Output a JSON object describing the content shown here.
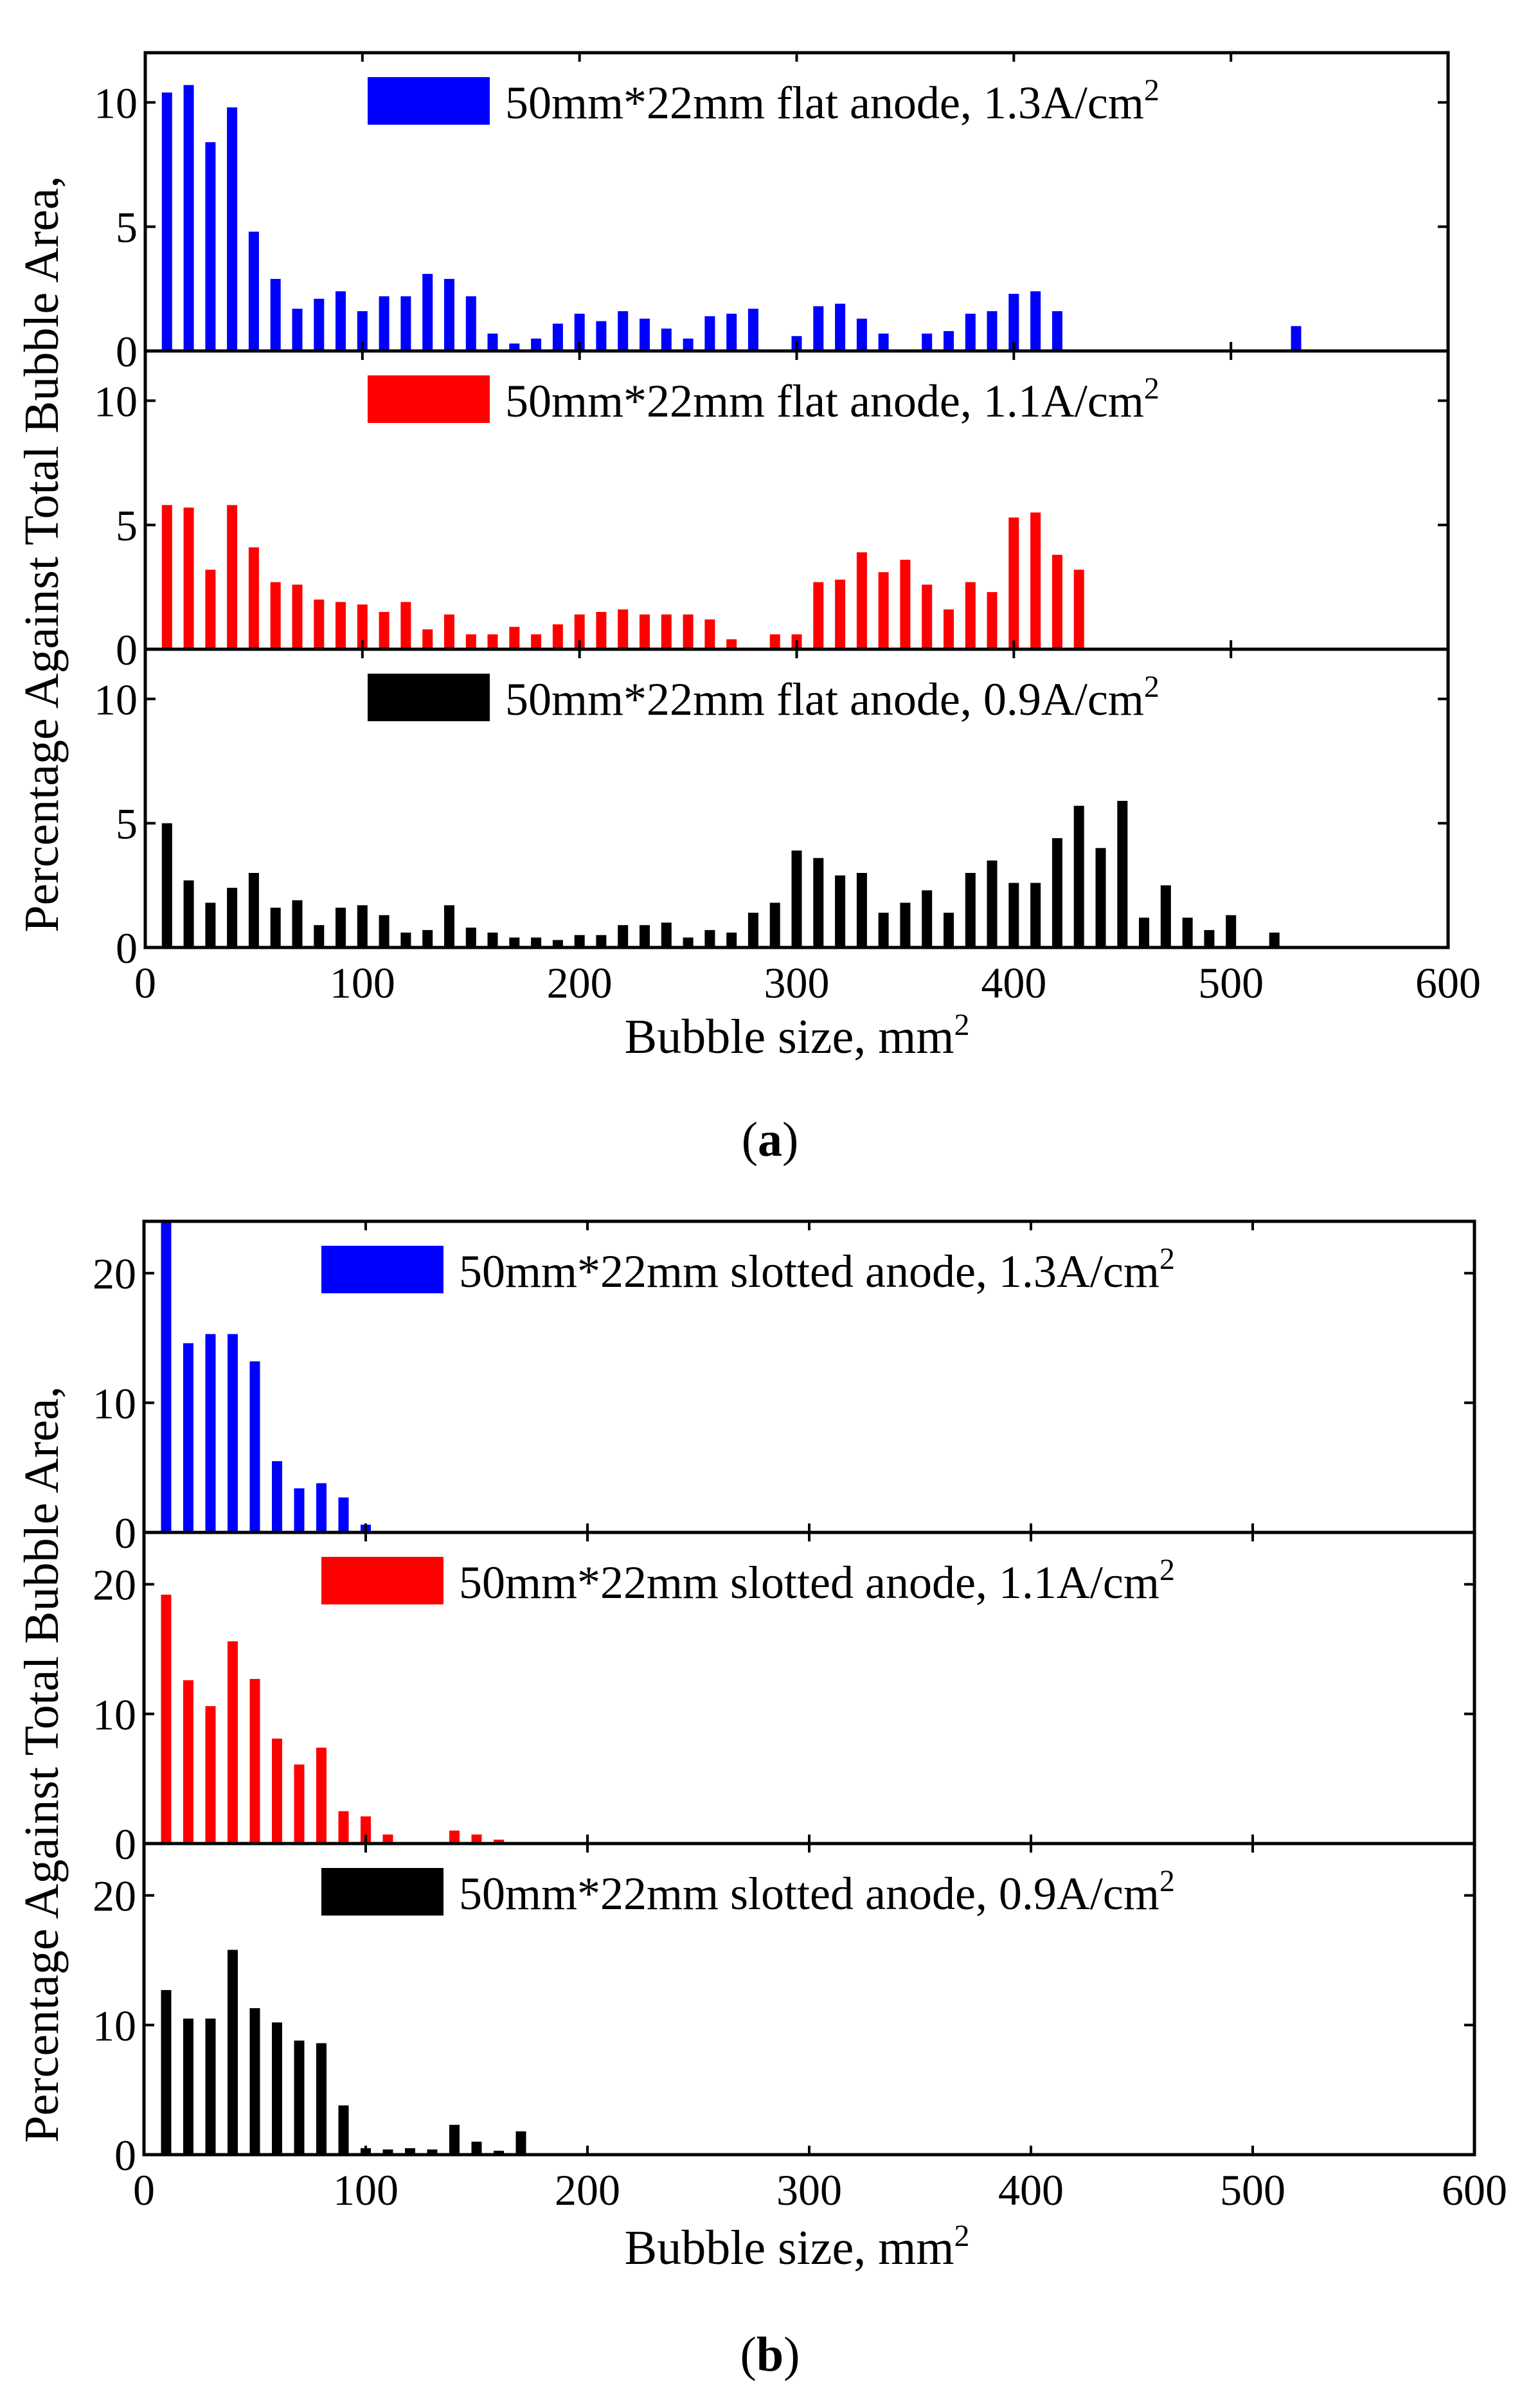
{
  "caption_a_open": "(",
  "caption_a_letter": "a",
  "caption_a_close": ")",
  "caption_b_open": "(",
  "caption_b_letter": "b",
  "caption_b_close": ")",
  "chart_data": [
    {
      "id": "a",
      "type": "bar",
      "title": "",
      "xlabel_main": "Bubble size, mm",
      "xlabel_sup": "2",
      "ylabel_line1": "Percentage Against Total Bubble Area,",
      "xlim": [
        0,
        600
      ],
      "x_ticks": [
        0,
        100,
        200,
        300,
        400,
        500,
        600
      ],
      "x_tick_labels": [
        "0",
        "100",
        "200",
        "300",
        "400",
        "500",
        "600"
      ],
      "panels": [
        {
          "name": "flat-1.3",
          "color": "#0000ff",
          "legend_main": "50mm*22mm flat anode, 1.3A/cm",
          "legend_sup": "2",
          "ylim": [
            0,
            12
          ],
          "y_ticks": [
            0,
            5,
            10
          ],
          "y_tick_labels": [
            "0",
            "5",
            "10"
          ],
          "x": [
            10,
            20,
            30,
            40,
            50,
            60,
            70,
            80,
            90,
            100,
            110,
            120,
            130,
            140,
            150,
            160,
            170,
            180,
            190,
            200,
            210,
            220,
            230,
            240,
            250,
            260,
            270,
            280,
            300,
            310,
            320,
            330,
            340,
            360,
            370,
            380,
            390,
            400,
            410,
            420,
            530
          ],
          "values": [
            10.4,
            10.7,
            8.4,
            9.8,
            4.8,
            2.9,
            1.7,
            2.1,
            2.4,
            1.6,
            2.2,
            2.2,
            3.1,
            2.9,
            2.2,
            0.7,
            0.3,
            0.5,
            1.1,
            1.5,
            1.2,
            1.6,
            1.3,
            0.9,
            0.5,
            1.4,
            1.5,
            1.7,
            0.6,
            1.8,
            1.9,
            1.3,
            0.7,
            0.7,
            0.8,
            1.5,
            1.6,
            2.3,
            2.4,
            1.6,
            1.0
          ]
        },
        {
          "name": "flat-1.1",
          "color": "#ff0000",
          "legend_main": "50mm*22mm flat anode, 1.1A/cm",
          "legend_sup": "2",
          "ylim": [
            0,
            12
          ],
          "y_ticks": [
            0,
            5,
            10
          ],
          "y_tick_labels": [
            "0",
            "5",
            "10"
          ],
          "x": [
            10,
            20,
            30,
            40,
            50,
            60,
            70,
            80,
            90,
            100,
            110,
            120,
            130,
            140,
            150,
            160,
            170,
            180,
            190,
            200,
            210,
            220,
            230,
            240,
            250,
            260,
            270,
            290,
            300,
            310,
            320,
            330,
            340,
            350,
            360,
            370,
            380,
            390,
            400,
            410,
            420,
            430
          ],
          "values": [
            5.8,
            5.7,
            3.2,
            5.8,
            4.1,
            2.7,
            2.6,
            2.0,
            1.9,
            1.8,
            1.5,
            1.9,
            0.8,
            1.4,
            0.6,
            0.6,
            0.9,
            0.6,
            1.0,
            1.4,
            1.5,
            1.6,
            1.4,
            1.4,
            1.4,
            1.2,
            0.4,
            0.6,
            0.6,
            2.7,
            2.8,
            3.9,
            3.1,
            3.6,
            2.6,
            1.6,
            2.7,
            2.3,
            5.3,
            5.5,
            3.8,
            3.2
          ]
        },
        {
          "name": "flat-0.9",
          "color": "#000000",
          "legend_main": "50mm*22mm flat anode, 0.9A/cm",
          "legend_sup": "2",
          "ylim": [
            0,
            12
          ],
          "y_ticks": [
            0,
            5,
            10
          ],
          "y_tick_labels": [
            "0",
            "5",
            "10"
          ],
          "x": [
            10,
            20,
            30,
            40,
            50,
            60,
            70,
            80,
            90,
            100,
            110,
            120,
            130,
            140,
            150,
            160,
            170,
            180,
            190,
            200,
            210,
            220,
            230,
            240,
            250,
            260,
            270,
            280,
            290,
            300,
            310,
            320,
            330,
            340,
            350,
            360,
            370,
            380,
            390,
            400,
            410,
            420,
            430,
            440,
            450,
            460,
            470,
            480,
            490,
            500,
            520
          ],
          "values": [
            5.0,
            2.7,
            1.8,
            2.4,
            3.0,
            1.6,
            1.9,
            0.9,
            1.6,
            1.7,
            1.3,
            0.6,
            0.7,
            1.7,
            0.8,
            0.6,
            0.4,
            0.4,
            0.3,
            0.5,
            0.5,
            0.9,
            0.9,
            1.0,
            0.4,
            0.7,
            0.6,
            1.4,
            1.8,
            3.9,
            3.6,
            2.9,
            3.0,
            1.4,
            1.8,
            2.3,
            1.4,
            3.0,
            3.5,
            2.6,
            2.6,
            4.4,
            5.7,
            4.0,
            5.9,
            1.2,
            2.5,
            1.2,
            0.7,
            1.3,
            0.6
          ]
        }
      ]
    },
    {
      "id": "b",
      "type": "bar",
      "title": "",
      "xlabel_main": "Bubble size, mm",
      "xlabel_sup": "2",
      "ylabel_line1": "Percentage Against Total Bubble Area,",
      "xlim": [
        0,
        600
      ],
      "x_ticks": [
        0,
        100,
        200,
        300,
        400,
        500,
        600
      ],
      "x_tick_labels": [
        "0",
        "100",
        "200",
        "300",
        "400",
        "500",
        "600"
      ],
      "panels": [
        {
          "name": "slotted-1.3",
          "color": "#0000ff",
          "legend_main": "50mm*22mm slotted anode, 1.3A/cm",
          "legend_sup": "2",
          "ylim": [
            0,
            24
          ],
          "y_ticks": [
            0,
            10,
            20
          ],
          "y_tick_labels": [
            "0",
            "10",
            "20"
          ],
          "x": [
            10,
            20,
            30,
            40,
            50,
            60,
            70,
            80,
            90,
            100
          ],
          "values": [
            24.0,
            14.6,
            15.3,
            15.3,
            13.2,
            5.5,
            3.4,
            3.8,
            2.7,
            0.6
          ]
        },
        {
          "name": "slotted-1.1",
          "color": "#ff0000",
          "legend_main": "50mm*22mm slotted anode, 1.1A/cm",
          "legend_sup": "2",
          "ylim": [
            0,
            24
          ],
          "y_ticks": [
            0,
            10,
            20
          ],
          "y_tick_labels": [
            "0",
            "10",
            "20"
          ],
          "x": [
            10,
            20,
            30,
            40,
            50,
            60,
            70,
            80,
            90,
            100,
            110,
            140,
            150,
            160
          ],
          "values": [
            19.2,
            12.6,
            10.6,
            15.6,
            12.7,
            8.1,
            6.1,
            7.4,
            2.5,
            2.1,
            0.7,
            1.0,
            0.7,
            0.3
          ]
        },
        {
          "name": "slotted-0.9",
          "color": "#000000",
          "legend_main": "50mm*22mm slotted anode, 0.9A/cm",
          "legend_sup": "2",
          "ylim": [
            0,
            24
          ],
          "y_ticks": [
            0,
            10,
            20
          ],
          "y_tick_labels": [
            "0",
            "10",
            "20"
          ],
          "x": [
            10,
            20,
            30,
            40,
            50,
            60,
            70,
            80,
            90,
            100,
            110,
            120,
            130,
            140,
            150,
            160,
            170
          ],
          "values": [
            12.7,
            10.5,
            10.5,
            15.8,
            11.3,
            10.2,
            8.8,
            8.6,
            3.8,
            0.5,
            0.4,
            0.5,
            0.4,
            2.3,
            1.0,
            0.3,
            1.8
          ]
        }
      ]
    }
  ]
}
